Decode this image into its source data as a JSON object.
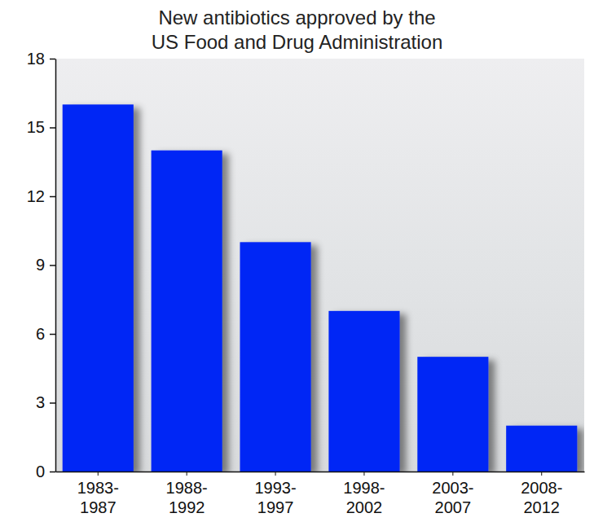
{
  "chart_data": {
    "type": "bar",
    "title": "New antibiotics approved by the US Food and Drug Administration",
    "categories": [
      "1983-1987",
      "1988-1992",
      "1993-1997",
      "1998-2002",
      "2003-2007",
      "2008-2012"
    ],
    "values": [
      16,
      14,
      10,
      7,
      5,
      2
    ],
    "color": "#0527f5",
    "ylim": [
      0,
      18
    ],
    "yticks": [
      0,
      3,
      6,
      9,
      12,
      15,
      18
    ],
    "grid": false
  }
}
